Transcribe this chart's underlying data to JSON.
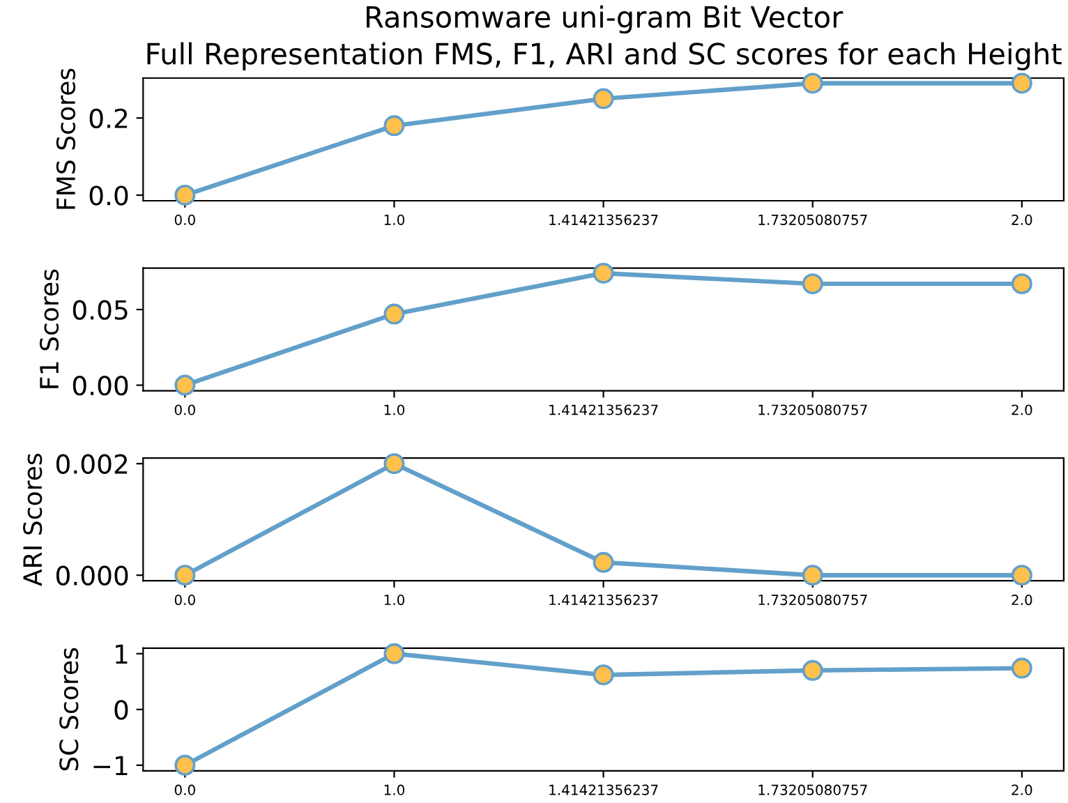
{
  "chart_data": [
    {
      "type": "line",
      "title": "Ransomware uni-gram Bit Vector",
      "subtitle": "Full Representation FMS, F1, ARI and SC scores for each Height",
      "ylabel": "FMS Scores",
      "categories": [
        "0.0",
        "1.0",
        "1.41421356237",
        "1.73205080757",
        "2.0"
      ],
      "values": [
        0.0,
        0.18,
        0.25,
        0.29,
        0.29
      ],
      "color": "#62a0ca",
      "colors": [
        "#ffc04c",
        "#ffc04c",
        "#ffc04c",
        "#ffc04c",
        "#ffc04c"
      ],
      "marker": "circle",
      "line_style": "solid",
      "ylim": [
        -0.0145,
        0.3035
      ],
      "yticks": [
        {
          "value": 0.0,
          "label": "0.0"
        },
        {
          "value": 0.2,
          "label": "0.2"
        }
      ]
    },
    {
      "type": "line",
      "ylabel": "F1 Scores",
      "categories": [
        "0.0",
        "1.0",
        "1.41421356237",
        "1.73205080757",
        "2.0"
      ],
      "values": [
        0.0,
        0.047,
        0.074,
        0.067,
        0.067
      ],
      "color": "#62a0ca",
      "colors": [
        "#ffc04c",
        "#ffc04c",
        "#ffc04c",
        "#ffc04c",
        "#ffc04c"
      ],
      "marker": "circle",
      "line_style": "solid",
      "ylim": [
        -0.0037,
        0.0774
      ],
      "yticks": [
        {
          "value": 0.0,
          "label": "0.00"
        },
        {
          "value": 0.05,
          "label": "0.05"
        }
      ]
    },
    {
      "type": "line",
      "ylabel": "ARI Scores",
      "categories": [
        "0.0",
        "1.0",
        "1.41421356237",
        "1.73205080757",
        "2.0"
      ],
      "values": [
        0.0,
        0.002,
        0.00023,
        0.0,
        0.0
      ],
      "color": "#62a0ca",
      "colors": [
        "#ffc04c",
        "#ffc04c",
        "#ffc04c",
        "#ffc04c",
        "#ffc04c"
      ],
      "marker": "circle",
      "line_style": "solid",
      "ylim": [
        -0.0001,
        0.0021
      ],
      "yticks": [
        {
          "value": 0.0,
          "label": "0.000"
        },
        {
          "value": 0.002,
          "label": "0.002"
        }
      ]
    },
    {
      "type": "line",
      "ylabel": "SC Scores",
      "categories": [
        "0.0",
        "1.0",
        "1.41421356237",
        "1.73205080757",
        "2.0"
      ],
      "values": [
        -1.0,
        1.0,
        0.62,
        0.7,
        0.74
      ],
      "color": "#62a0ca",
      "colors": [
        "#ffc04c",
        "#ffc04c",
        "#ffc04c",
        "#ffc04c",
        "#ffc04c"
      ],
      "marker": "circle",
      "line_style": "solid",
      "ylim": [
        -1.1,
        1.1
      ],
      "yticks": [
        {
          "value": -1,
          "label": "−1"
        },
        {
          "value": 0,
          "label": "0"
        },
        {
          "value": 1,
          "label": "1"
        }
      ]
    }
  ]
}
